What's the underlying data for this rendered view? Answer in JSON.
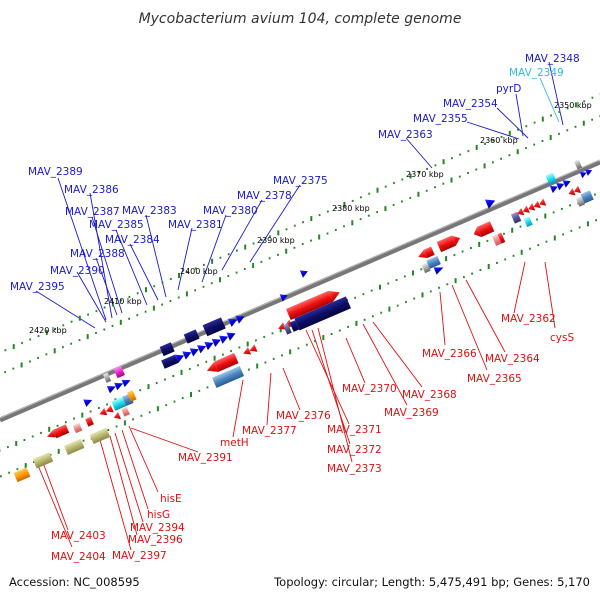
{
  "title": "Mycobacterium avium 104, complete genome",
  "footer": {
    "accession": "Accession: NC_008595",
    "topology": "Topology: circular; Length: 5,475,491 bp; Genes: 5,170"
  },
  "colors": {
    "forward_label": "#1a1acc",
    "reverse_label": "#dd1111",
    "cyan_label": "#33bbdd",
    "backbone": "#888888",
    "tick_major": "#228822",
    "tick_minor": "#228822"
  },
  "scale_labels": [
    "2350 kbp",
    "2360 kbp",
    "2370 kbp",
    "2380 kbp",
    "2390 kbp",
    "2400 kbp",
    "2410 kbp",
    "2420 kbp"
  ],
  "top_labels": [
    {
      "text": "MAV_2348",
      "color": "blue"
    },
    {
      "text": "MAV_2349",
      "color": "cyan"
    },
    {
      "text": "pyrD",
      "color": "blue"
    },
    {
      "text": "MAV_2354",
      "color": "blue"
    },
    {
      "text": "MAV_2355",
      "color": "blue"
    },
    {
      "text": "MAV_2363",
      "color": "blue"
    },
    {
      "text": "MAV_2375",
      "color": "blue"
    },
    {
      "text": "MAV_2378",
      "color": "blue"
    },
    {
      "text": "MAV_2380",
      "color": "blue"
    },
    {
      "text": "MAV_2381",
      "color": "blue"
    },
    {
      "text": "MAV_2383",
      "color": "blue"
    },
    {
      "text": "MAV_2389",
      "color": "blue"
    },
    {
      "text": "MAV_2386",
      "color": "blue"
    },
    {
      "text": "MAV_2387",
      "color": "blue"
    },
    {
      "text": "MAV_2385",
      "color": "blue"
    },
    {
      "text": "MAV_2384",
      "color": "blue"
    },
    {
      "text": "MAV_2388",
      "color": "blue"
    },
    {
      "text": "MAV_2390",
      "color": "blue"
    },
    {
      "text": "MAV_2395",
      "color": "blue"
    }
  ],
  "bottom_labels": [
    {
      "text": "MAV_2362"
    },
    {
      "text": "cysS"
    },
    {
      "text": "MAV_2364"
    },
    {
      "text": "MAV_2365"
    },
    {
      "text": "MAV_2366"
    },
    {
      "text": "MAV_2368"
    },
    {
      "text": "MAV_2369"
    },
    {
      "text": "MAV_2370"
    },
    {
      "text": "MAV_2371"
    },
    {
      "text": "MAV_2372"
    },
    {
      "text": "MAV_2373"
    },
    {
      "text": "MAV_2376"
    },
    {
      "text": "MAV_2377"
    },
    {
      "text": "metH"
    },
    {
      "text": "MAV_2391"
    },
    {
      "text": "hisE"
    },
    {
      "text": "hisG"
    },
    {
      "text": "MAV_2394"
    },
    {
      "text": "MAV_2396"
    },
    {
      "text": "MAV_2397"
    },
    {
      "text": "MAV_2403"
    },
    {
      "text": "MAV_2404"
    }
  ]
}
